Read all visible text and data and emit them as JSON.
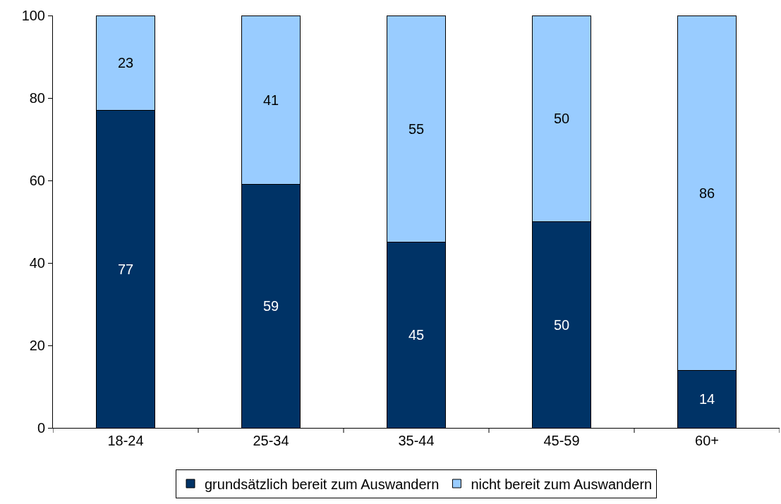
{
  "chart_data": {
    "type": "bar",
    "stacked": true,
    "categories": [
      "18-24",
      "25-34",
      "35-44",
      "45-59",
      "60+"
    ],
    "series": [
      {
        "name": "grundsätzlich bereit zum Auswandern",
        "color": "#003366",
        "values": [
          77,
          59,
          45,
          50,
          14
        ]
      },
      {
        "name": "nicht bereit zum Auswandern",
        "color": "#99ccff",
        "values": [
          23,
          41,
          55,
          50,
          86
        ]
      }
    ],
    "ylim": [
      0,
      100
    ],
    "yticks": [
      0,
      20,
      40,
      60,
      80,
      100
    ],
    "grid": false,
    "legend": "bottom",
    "data_labels": true
  }
}
